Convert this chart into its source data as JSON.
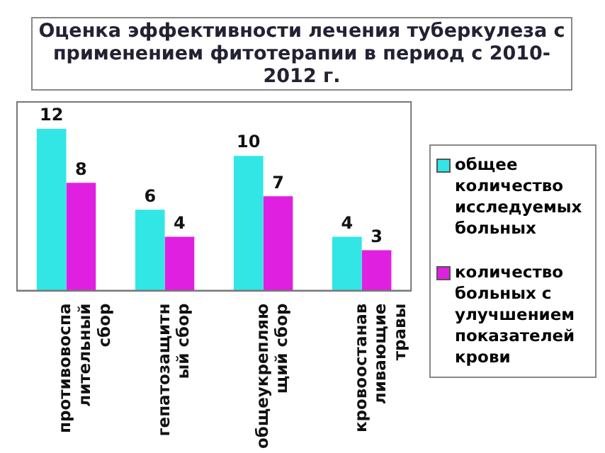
{
  "chart_data": {
    "type": "bar",
    "title": "Оценка эффективности лечения туберкулеза с применением  фитотерапии в период с 2010-2012 г.",
    "categories": [
      "противовоспалительный сбор",
      "гепатозащитный сбор",
      "общеукрепляющий сбор",
      "кровоостанавливающие травы"
    ],
    "series": [
      {
        "name": "общее количество исследуемых больных",
        "color": "#33e6e6",
        "values": [
          12,
          6,
          10,
          4
        ]
      },
      {
        "name": "количество больных с улучшением показателей крови",
        "color": "#e020e0",
        "values": [
          8,
          4,
          7,
          3
        ]
      }
    ],
    "relative": false,
    "data_labels": true,
    "grid": false,
    "legend": "right"
  }
}
